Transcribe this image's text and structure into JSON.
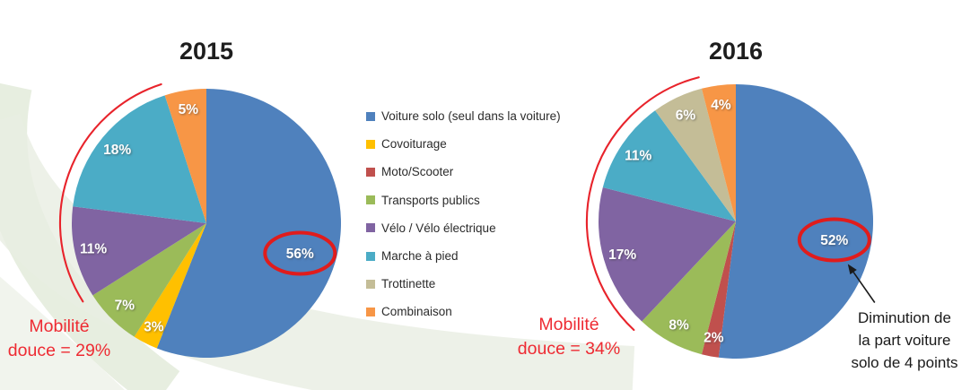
{
  "colors": {
    "annotation_red": "#E8232B",
    "ellipse_red": "#E01C1C",
    "arrow_black": "#1A1A1A",
    "title_text": "#1E1E1E",
    "legend_text": "#2B2B2B",
    "slice_label_text": "#FFFFFF",
    "swoosh_green": "#DFE8D5",
    "swoosh_pale": "#E9EEE2"
  },
  "legend": {
    "items": [
      {
        "label": "Voiture solo (seul dans la voiture)",
        "color": "#4F81BD"
      },
      {
        "label": "Covoiturage",
        "color": "#FFC000"
      },
      {
        "label": "Moto/Scooter",
        "color": "#C0504D"
      },
      {
        "label": "Transports publics",
        "color": "#9BBB59"
      },
      {
        "label": "Vélo / Vélo électrique",
        "color": "#8064A2"
      },
      {
        "label": "Marche à pied",
        "color": "#4BACC6"
      },
      {
        "label": "Trottinette",
        "color": "#C4BD97"
      },
      {
        "label": "Combinaison",
        "color": "#F79646"
      }
    ],
    "position": "between-charts"
  },
  "chart_data": [
    {
      "type": "pie",
      "title": "2015",
      "unit": "%",
      "categories": [
        "Voiture solo (seul dans la voiture)",
        "Covoiturage",
        "Moto/Scooter",
        "Transports publics",
        "Vélo / Vélo électrique",
        "Marche à pied",
        "Trottinette",
        "Combinaison"
      ],
      "values": [
        56,
        3,
        0,
        7,
        11,
        18,
        0,
        5
      ],
      "colors": [
        "#4F81BD",
        "#FFC000",
        "#C0504D",
        "#9BBB59",
        "#8064A2",
        "#4BACC6",
        "#C4BD97",
        "#F79646"
      ],
      "annotations": {
        "soft_mobility_label_lines": [
          "Mobilité",
          "douce = 29%"
        ],
        "soft_mobility_total": "29%",
        "arc_covers": [
          "Vélo / Vélo électrique",
          "Marche à pied"
        ],
        "circled_slice": "Voiture solo (seul dans la voiture)",
        "circled_value_text": "56%"
      }
    },
    {
      "type": "pie",
      "title": "2016",
      "unit": "%",
      "categories": [
        "Voiture solo (seul dans la voiture)",
        "Covoiturage",
        "Moto/Scooter",
        "Transports publics",
        "Vélo / Vélo électrique",
        "Marche à pied",
        "Trottinette",
        "Combinaison"
      ],
      "values": [
        52,
        0,
        2,
        8,
        17,
        11,
        6,
        4
      ],
      "colors": [
        "#4F81BD",
        "#FFC000",
        "#C0504D",
        "#9BBB59",
        "#8064A2",
        "#4BACC6",
        "#C4BD97",
        "#F79646"
      ],
      "annotations": {
        "soft_mobility_label_lines": [
          "Mobilité",
          "douce = 34%"
        ],
        "soft_mobility_total": "34%",
        "arc_covers": [
          "Vélo / Vélo électrique",
          "Marche à pied",
          "Trottinette"
        ],
        "circled_slice": "Voiture solo (seul dans la voiture)",
        "circled_value_text": "52%",
        "note_lines": [
          "Diminution de",
          "la part voiture",
          "solo de 4 points"
        ]
      }
    }
  ]
}
